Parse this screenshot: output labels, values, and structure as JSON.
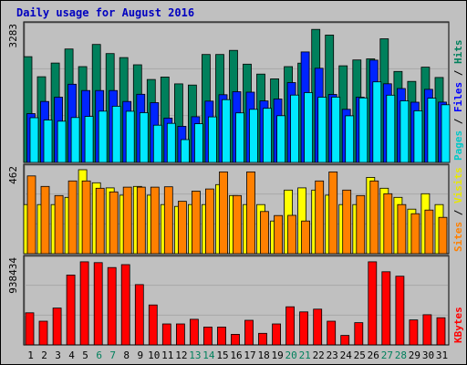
{
  "chart_data": {
    "type": "bar",
    "title": "Daily usage for August 2016",
    "categories": [
      "1",
      "2",
      "3",
      "4",
      "5",
      "6",
      "7",
      "8",
      "9",
      "10",
      "11",
      "12",
      "13",
      "14",
      "15",
      "16",
      "17",
      "18",
      "19",
      "20",
      "21",
      "22",
      "23",
      "24",
      "25",
      "26",
      "27",
      "28",
      "29",
      "30",
      "31"
    ],
    "weekend_days": [
      "6",
      "7",
      "13",
      "14",
      "20",
      "21",
      "27",
      "28"
    ],
    "colors": {
      "background": "#c0c0c0",
      "hits": "#00805c",
      "files": "#0024ff",
      "pages": "#00e8ff",
      "visits": "#ffff00",
      "sites": "#ff8000",
      "kbytes": "#ff0000",
      "title": "#0000c0",
      "weekday_label": "#000000",
      "weekend_label": "#00805c"
    },
    "panels": [
      {
        "id": "hits-files-pages",
        "max_label": "3283",
        "ymax": 3283,
        "legend": [
          {
            "text": "Pages",
            "color": "#00c8c8"
          },
          {
            "text": " / ",
            "color": "#000000"
          },
          {
            "text": "Files",
            "color": "#0000ff"
          },
          {
            "text": " / ",
            "color": "#000000"
          },
          {
            "text": "Hits",
            "color": "#00805c"
          }
        ],
        "series": [
          {
            "name": "Hits",
            "color": "#00805c",
            "values": [
              2571,
              2082,
              2416,
              2758,
              2330,
              2869,
              2647,
              2549,
              2374,
              2016,
              2076,
              1910,
              1882,
              2625,
              2625,
              2723,
              2389,
              2147,
              2031,
              2330,
              2414,
              3235,
              3097,
              2349,
              2490,
              2518,
              3005,
              2212,
              1969,
              2316,
              2065
            ]
          },
          {
            "name": "Files",
            "color": "#0024ff",
            "values": [
              1186,
              1482,
              1585,
              1900,
              1748,
              1748,
              1747,
              1481,
              1658,
              1452,
              1079,
              879,
              1111,
              1491,
              1645,
              1719,
              1709,
              1496,
              1542,
              1942,
              2686,
              2290,
              1653,
              1290,
              1587,
              2486,
              1913,
              1797,
              1463,
              1776,
              1467
            ]
          },
          {
            "name": "Pages",
            "color": "#00e8ff",
            "values": [
              1086,
              1031,
              1003,
              1091,
              1118,
              1246,
              1367,
              1244,
              1210,
              904,
              950,
              555,
              941,
              1107,
              1526,
              1205,
              1292,
              1316,
              1136,
              1636,
              1696,
              1587,
              1588,
              1133,
              1569,
              1959,
              1634,
              1498,
              1255,
              1562,
              1403
            ]
          }
        ]
      },
      {
        "id": "visits-sites",
        "max_label": "462",
        "ymax": 462,
        "legend": [
          {
            "text": "Sites",
            "color": "#ff8000"
          },
          {
            "text": " / ",
            "color": "#000000"
          },
          {
            "text": "Visits",
            "color": "#e8e800"
          }
        ],
        "series": [
          {
            "name": "Visits",
            "color": "#ffff00",
            "values": [
              270,
              270,
              270,
              310,
              462,
              390,
              362,
              322,
              370,
              322,
              270,
              260,
              270,
              270,
              380,
              320,
              270,
              270,
              180,
              350,
              362,
              350,
              322,
              270,
              270,
              420,
              360,
              310,
              245,
              330,
              270
            ]
          },
          {
            "name": "Sites",
            "color": "#ff8000",
            "values": [
              428,
              370,
              320,
              400,
              400,
              360,
              340,
              366,
              366,
              366,
              368,
              288,
              344,
              356,
              450,
              320,
              450,
              232,
              210,
              211,
              180,
              400,
              450,
              350,
              320,
              400,
              330,
              270,
              220,
              240,
              200
            ]
          }
        ]
      },
      {
        "id": "kbytes",
        "max_label": "938434",
        "ymax": 938434,
        "legend": [
          {
            "text": "KBytes",
            "color": "#ff0000"
          }
        ],
        "series": [
          {
            "name": "KBytes",
            "color": "#ff0000",
            "values": [
              359000,
              265000,
              412000,
              781000,
              929000,
              920000,
              865000,
              898000,
              674000,
              447000,
              235000,
              235000,
              287000,
              200000,
              200000,
              118000,
              275000,
              130000,
              235000,
              426000,
              369000,
              400000,
              265000,
              106000,
              249000,
              929000,
              818000,
              768000,
              279000,
              338000,
              304000
            ]
          }
        ]
      }
    ]
  }
}
